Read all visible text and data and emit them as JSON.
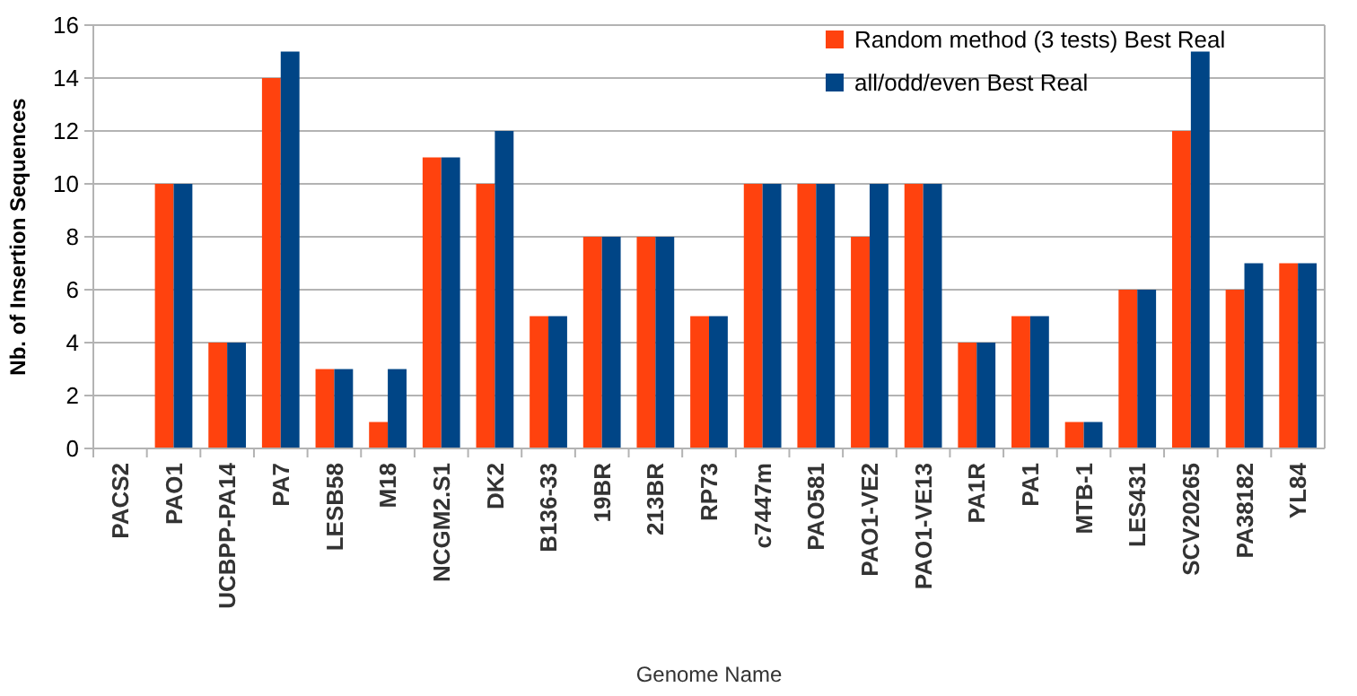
{
  "chart_data": {
    "type": "bar",
    "xlabel": "Genome Name",
    "ylabel": "Nb. of Insertion Sequences",
    "categories": [
      "PACS2",
      "PAO1",
      "UCBPP-PA14",
      "PA7",
      "LESB58",
      "M18",
      "NCGM2.S1",
      "DK2",
      "B136-33",
      "19BR",
      "213BR",
      "RP73",
      "c7447m",
      "PAO581",
      "PAO1-VE2",
      "PAO1-VE13",
      "PA1R",
      "PA1",
      "MTB-1",
      "LES431",
      "SCV20265",
      "PA38182",
      "YL84"
    ],
    "series": [
      {
        "name": "Random method (3 tests) Best Real",
        "color": "#ff420e",
        "values": [
          0,
          10,
          4,
          14,
          3,
          1,
          11,
          10,
          5,
          8,
          8,
          5,
          10,
          10,
          8,
          10,
          4,
          5,
          1,
          6,
          12,
          6,
          7
        ]
      },
      {
        "name": "all/odd/even Best Real",
        "color": "#004586",
        "values": [
          0,
          10,
          4,
          15,
          3,
          3,
          11,
          12,
          5,
          8,
          8,
          5,
          10,
          10,
          10,
          10,
          4,
          5,
          1,
          6,
          15,
          7,
          7
        ]
      }
    ],
    "ylim": [
      0,
      16
    ],
    "yticks": [
      0,
      2,
      4,
      6,
      8,
      10,
      12,
      14,
      16
    ],
    "grid": "y",
    "legend": "top right"
  }
}
